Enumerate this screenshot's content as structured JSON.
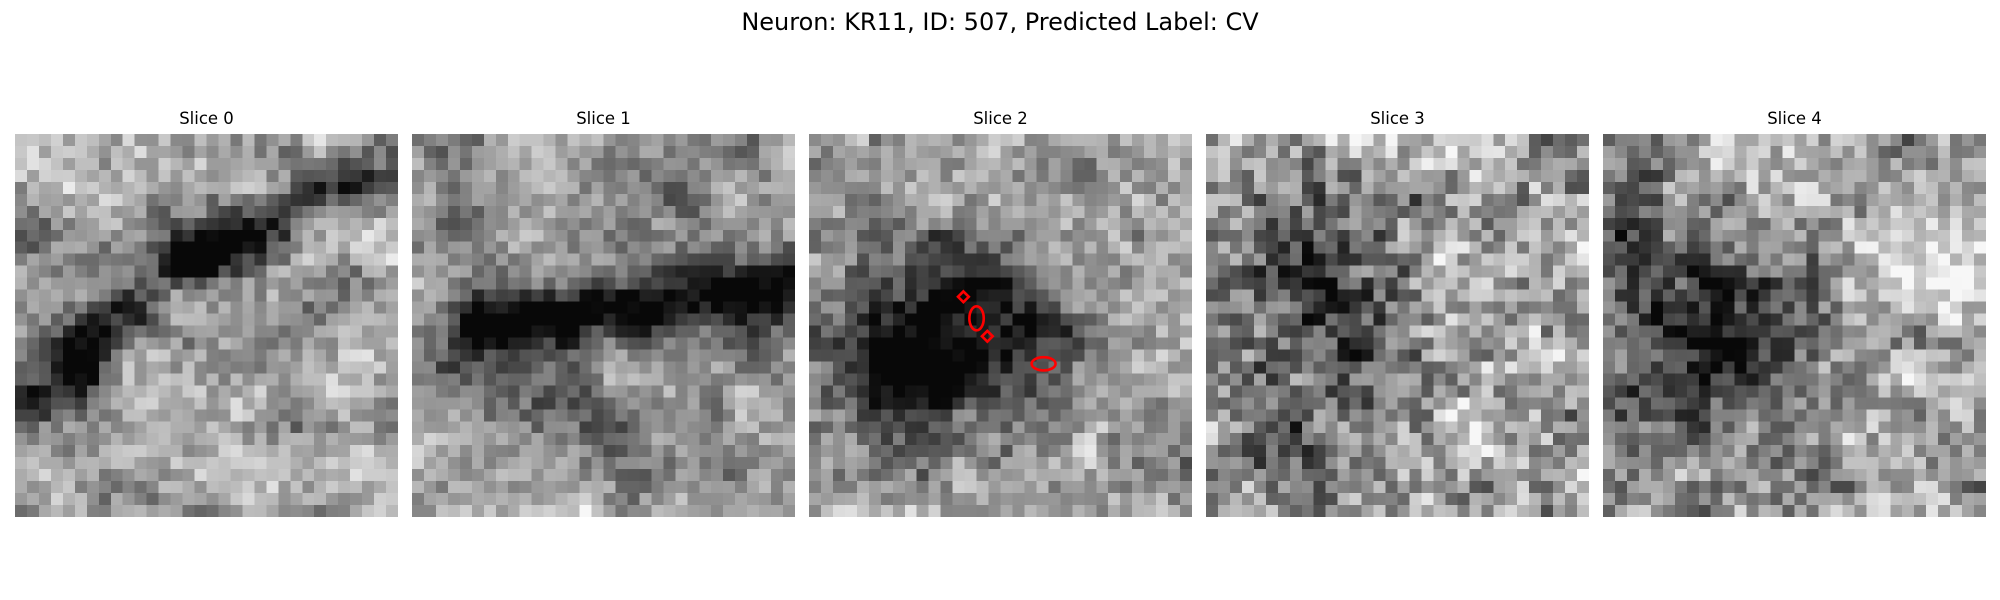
{
  "figure": {
    "title": "Neuron: KR11, ID: 507, Predicted Label: CV"
  },
  "panels": [
    {
      "label": "Slice 0",
      "kind": "slice0"
    },
    {
      "label": "Slice 1",
      "kind": "slice1"
    },
    {
      "label": "Slice 2",
      "kind": "slice2"
    },
    {
      "label": "Slice 3",
      "kind": "slice3"
    },
    {
      "label": "Slice 4",
      "kind": "slice4"
    }
  ],
  "grid_size": 32,
  "colormap": "gray",
  "annotation_color": "#ff0000"
}
